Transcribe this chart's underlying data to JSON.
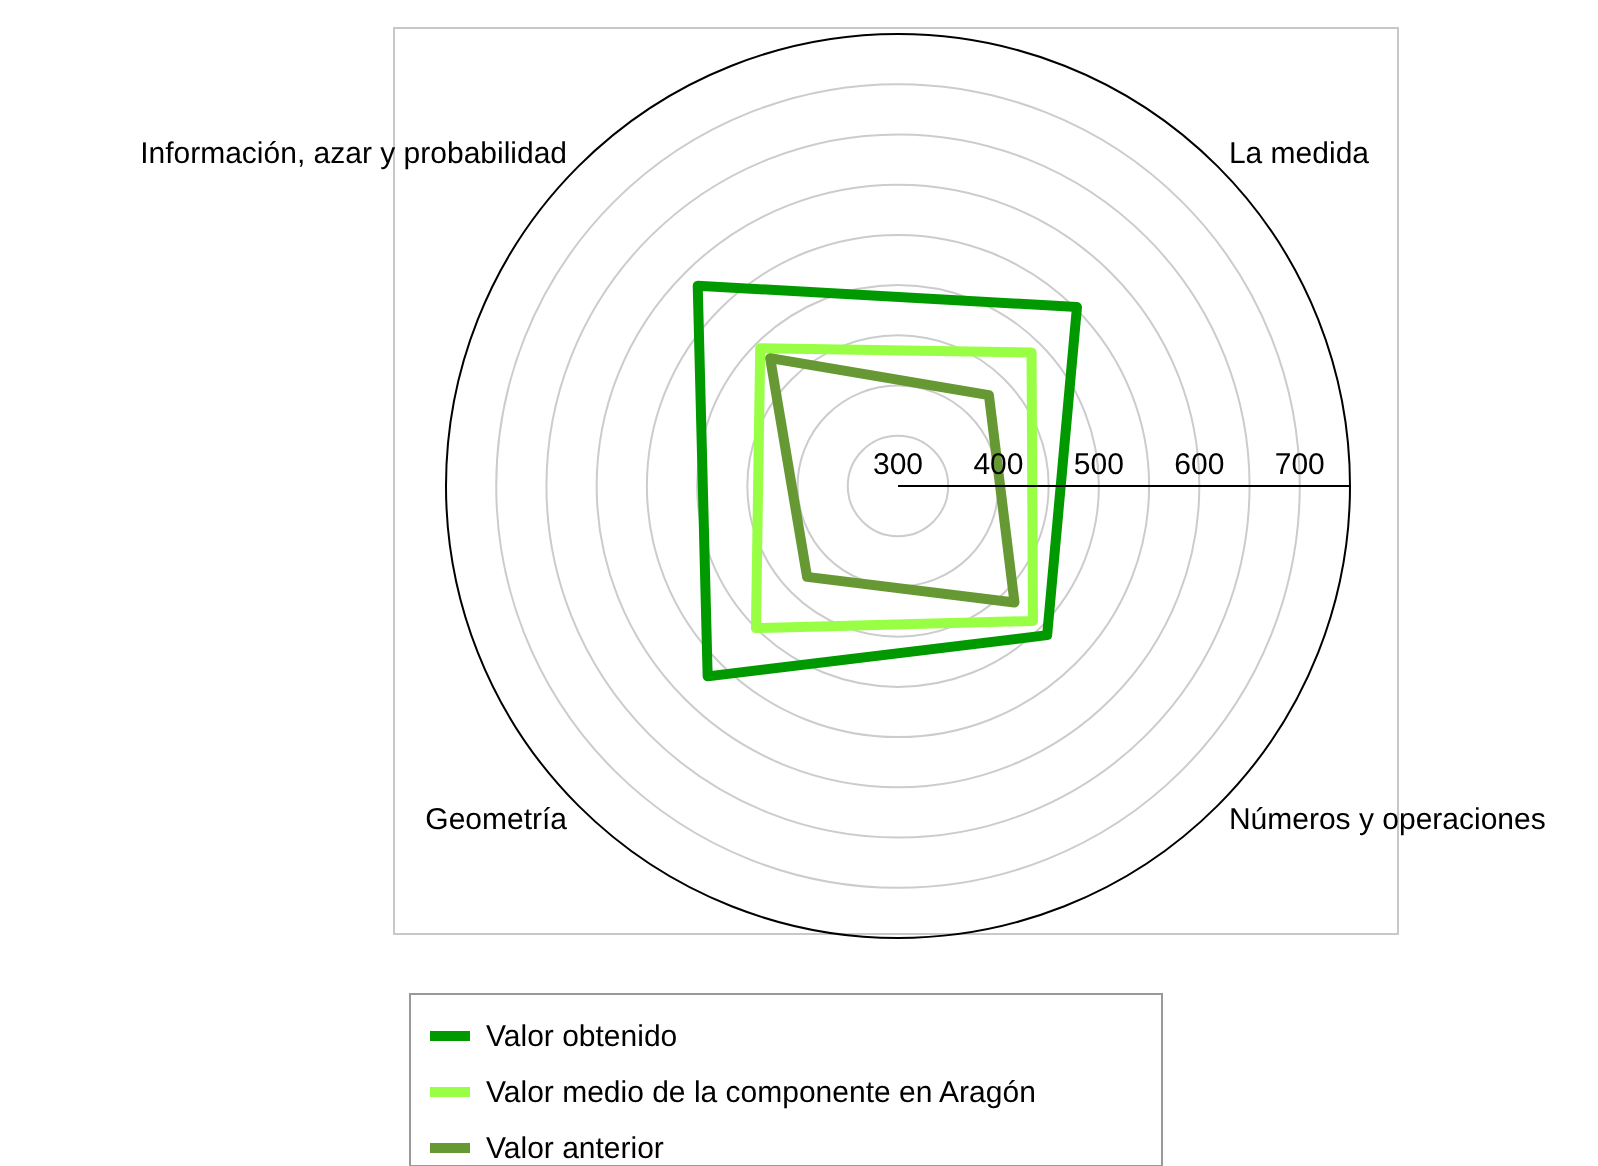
{
  "chart_data": {
    "type": "radar",
    "categories": [
      "La medida",
      "Números y operaciones",
      "Geometría",
      "Información, azar y probabilidad"
    ],
    "series": [
      {
        "name": "Valor obtenido",
        "color": "#009900",
        "values": [
          552,
          510,
          568,
          582
        ]
      },
      {
        "name": "Valor medio de la componente en Aragón",
        "color": "#99ff44",
        "values": [
          488,
          490,
          500,
          494
        ]
      },
      {
        "name": "Valor anterior",
        "color": "#669933",
        "values": [
          428,
          464,
          428,
          480
        ]
      }
    ],
    "ylim": [
      300,
      750
    ],
    "yticks": [
      300,
      400,
      500,
      600,
      700
    ],
    "legend": "bottom"
  }
}
